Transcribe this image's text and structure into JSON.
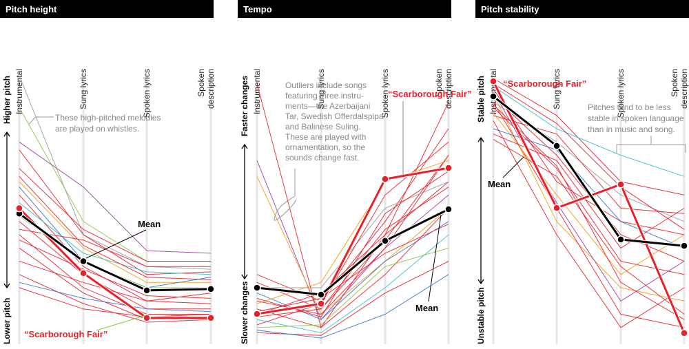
{
  "colors": {
    "red": "#e8202a",
    "mean": "#000000",
    "gray": "#999999",
    "green": "#8cc63f",
    "purple": "#a23aa8",
    "orange": "#f39c12",
    "blue": "#3b6fd1",
    "teal": "#3cbfc8",
    "yellow": "#f5c518"
  },
  "chart_data": [
    {
      "type": "line",
      "title": "Pitch height",
      "categories": [
        "Instrumental",
        "Sung lyrics",
        "Spoken lyrics",
        "Spoken description"
      ],
      "category_lines": [
        [
          "Instrumental"
        ],
        [
          "Sung lyrics"
        ],
        [
          "Spoken lyrics"
        ],
        [
          "Spoken",
          "description"
        ]
      ],
      "y_top_label": "Higher pitch",
      "y_bottom_label": "Lower pitch",
      "ylim": [
        0,
        100
      ],
      "mean": {
        "name": "Mean",
        "values": [
          48,
          30,
          19,
          19.5
        ]
      },
      "highlight": {
        "name": "“Scarborough Fair”",
        "values": [
          50,
          25.5,
          8.6,
          8.6
        ]
      },
      "annotations": [
        "These high-pitched melodies",
        "are played on whistles."
      ],
      "series": [
        {
          "color": "gray",
          "values": [
            100,
            40,
            28,
            27
          ]
        },
        {
          "color": "green",
          "values": [
            88,
            45,
            30,
            30
          ]
        },
        {
          "color": "purple",
          "values": [
            75,
            58,
            34,
            33
          ]
        },
        {
          "color": "red",
          "values": [
            72,
            40,
            25,
            26
          ]
        },
        {
          "color": "red",
          "values": [
            65,
            42,
            30,
            30
          ]
        },
        {
          "color": "orange",
          "values": [
            60,
            35,
            22,
            22
          ]
        },
        {
          "color": "blue",
          "values": [
            58,
            30,
            20,
            24
          ]
        },
        {
          "color": "red",
          "values": [
            55,
            28,
            15,
            18
          ]
        },
        {
          "color": "teal",
          "values": [
            52,
            33,
            26,
            25
          ]
        },
        {
          "color": "red",
          "values": [
            45,
            25,
            12,
            12
          ]
        },
        {
          "color": "red",
          "values": [
            42,
            38,
            28,
            28
          ]
        },
        {
          "color": "red",
          "values": [
            40,
            20,
            10,
            10
          ]
        },
        {
          "color": "red",
          "values": [
            35,
            18,
            8,
            9
          ]
        },
        {
          "color": "red",
          "values": [
            30,
            22,
            15,
            14
          ]
        },
        {
          "color": "red",
          "values": [
            25,
            14,
            7,
            8
          ]
        },
        {
          "color": "blue",
          "values": [
            22,
            16,
            12,
            11
          ]
        },
        {
          "color": "red",
          "values": [
            20,
            12,
            9,
            10
          ]
        },
        {
          "color": "green",
          "values": [
            47,
            30,
            20,
            20
          ]
        },
        {
          "color": "red",
          "values": [
            62,
            36,
            24,
            23
          ]
        },
        {
          "color": "red",
          "values": [
            38,
            27,
            17,
            16
          ]
        }
      ]
    },
    {
      "type": "line",
      "title": "Tempo",
      "categories": [
        "Instrumental",
        "Sung lyrics",
        "Spoken lyrics",
        "Spoken description"
      ],
      "category_lines": [
        [
          "Instrumental"
        ],
        [
          "Sung lyrics"
        ],
        [
          "Spoken lyrics"
        ],
        [
          "Spoken",
          "description"
        ]
      ],
      "y_top_label": "Faster changes",
      "y_bottom_label": "Slower changes",
      "ylim": [
        0,
        100
      ],
      "mean": {
        "name": "Mean",
        "values": [
          20,
          17.4,
          37.7,
          49.6
        ]
      },
      "highlight": {
        "name": "“Scarborough Fair”",
        "values": [
          10.1,
          14,
          61,
          65.2
        ]
      },
      "annotations": [
        "Outliers include songs",
        "featuring three instru-",
        "ments—the Azerbaijani",
        "Tar, Swedish Offerdalspipa",
        "and Balinese Suling.",
        "These are played with",
        "ornamentation, so the",
        "sounds change fast."
      ],
      "series": [
        {
          "color": "red",
          "values": [
            97,
            5,
            40,
            60
          ]
        },
        {
          "color": "purple",
          "values": [
            68,
            8,
            35,
            55
          ]
        },
        {
          "color": "orange",
          "values": [
            62,
            10,
            30,
            50
          ]
        },
        {
          "color": "red",
          "values": [
            25,
            15,
            45,
            80
          ]
        },
        {
          "color": "red",
          "values": [
            22,
            12,
            38,
            70
          ]
        },
        {
          "color": "gray",
          "values": [
            20,
            20,
            50,
            60
          ]
        },
        {
          "color": "blue",
          "values": [
            18,
            8,
            30,
            45
          ]
        },
        {
          "color": "red",
          "values": [
            15,
            10,
            35,
            70
          ]
        },
        {
          "color": "red",
          "values": [
            12,
            5,
            25,
            50
          ]
        },
        {
          "color": "red",
          "values": [
            10,
            18,
            40,
            90
          ]
        },
        {
          "color": "teal",
          "values": [
            8,
            3,
            20,
            40
          ]
        },
        {
          "color": "red",
          "values": [
            6,
            14,
            55,
            75
          ]
        },
        {
          "color": "green",
          "values": [
            5,
            6,
            28,
            35
          ]
        },
        {
          "color": "red",
          "values": [
            3,
            2,
            18,
            30
          ]
        },
        {
          "color": "orange",
          "values": [
            14,
            22,
            60,
            68
          ]
        },
        {
          "color": "red",
          "values": [
            9,
            12,
            42,
            58
          ]
        },
        {
          "color": "blue",
          "values": [
            4,
            1,
            10,
            25
          ]
        },
        {
          "color": "red",
          "values": [
            16,
            9,
            48,
            64
          ]
        },
        {
          "color": "red",
          "values": [
            11,
            16,
            33,
            44
          ]
        }
      ]
    },
    {
      "type": "line",
      "title": "Pitch stability",
      "categories": [
        "Instrumental",
        "Sung lyrics",
        "Spoken lyrics",
        "Spoken description"
      ],
      "category_lines": [
        [
          "Instrumental"
        ],
        [
          "Sung lyrics"
        ],
        [
          "Spoken lyrics"
        ],
        [
          "Spoken",
          "description"
        ]
      ],
      "y_top_label": "Stable pitch",
      "y_bottom_label": "Unstable pitch",
      "ylim": [
        0,
        100
      ],
      "mean": {
        "name": "Mean",
        "values": [
          92.2,
          73.5,
          38.2,
          35.8
        ]
      },
      "highlight": {
        "name": "“Scarborough Fair”",
        "values": [
          97.9,
          50.1,
          59,
          2.9
        ]
      },
      "annotations": [
        "Pitches tend to be less",
        "stable in spoken language",
        "than in music and song."
      ],
      "series": [
        {
          "color": "red",
          "values": [
            99,
            85,
            60,
            55
          ]
        },
        {
          "color": "teal",
          "values": [
            96,
            80,
            70,
            62
          ]
        },
        {
          "color": "red",
          "values": [
            95,
            60,
            45,
            40
          ]
        },
        {
          "color": "orange",
          "values": [
            93,
            45,
            20,
            15
          ]
        },
        {
          "color": "red",
          "values": [
            92,
            70,
            40,
            30
          ]
        },
        {
          "color": "red",
          "values": [
            90,
            50,
            10,
            5
          ]
        },
        {
          "color": "gray",
          "values": [
            90,
            75,
            55,
            45
          ]
        },
        {
          "color": "red",
          "values": [
            88,
            65,
            30,
            25
          ]
        },
        {
          "color": "orange",
          "values": [
            86,
            55,
            25,
            40
          ]
        },
        {
          "color": "red",
          "values": [
            85,
            78,
            50,
            48
          ]
        },
        {
          "color": "red",
          "values": [
            83,
            40,
            5,
            20
          ]
        },
        {
          "color": "blue",
          "values": [
            80,
            72,
            45,
            35
          ]
        },
        {
          "color": "red",
          "values": [
            78,
            68,
            35,
            50
          ]
        },
        {
          "color": "red",
          "values": [
            76,
            62,
            28,
            10
          ]
        },
        {
          "color": "purple",
          "values": [
            94,
            52,
            15,
            30
          ]
        },
        {
          "color": "red",
          "values": [
            97,
            82,
            58,
            42
          ]
        },
        {
          "color": "red",
          "values": [
            89,
            66,
            22,
            8
          ]
        }
      ]
    }
  ]
}
